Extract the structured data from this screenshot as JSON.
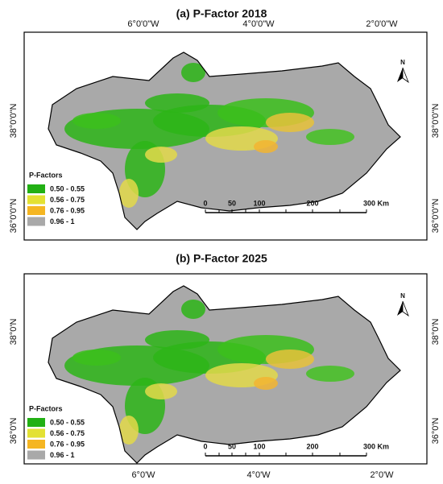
{
  "panels": [
    {
      "title": "(a) P-Factor 2018",
      "lon_labels": [
        "6°0'0\"W",
        "4°0'0\"W",
        "2°0'0\"W"
      ],
      "lat_labels": [
        "38°0'0\"N",
        "36°0'0\"N"
      ],
      "north": "N",
      "legend": {
        "title": "P-Factors",
        "items": [
          {
            "label": "0.50 - 0.55",
            "color": "#22b014"
          },
          {
            "label": "0.56 - 0.75",
            "color": "#e3e133"
          },
          {
            "label": "0.76 - 0.95",
            "color": "#f5b622"
          },
          {
            "label": "0.96 - 1",
            "color": "#a9a9a9"
          }
        ]
      },
      "scale": [
        "0",
        "50",
        "100",
        "200",
        "300 Km"
      ]
    },
    {
      "title": "(b) P-Factor 2025",
      "lon_labels": [
        "6°0'W",
        "4°0'W",
        "2°0'W"
      ],
      "lat_labels": [
        "38°0'N",
        "36°0'N"
      ],
      "north": "N",
      "legend": {
        "title": "P-Factors",
        "items": [
          {
            "label": "0.50 - 0.55",
            "color": "#22b014"
          },
          {
            "label": "0.56 - 0.75",
            "color": "#e3e133"
          },
          {
            "label": "0.76 - 0.95",
            "color": "#f5b622"
          },
          {
            "label": "0.96 - 1",
            "color": "#a9a9a9"
          }
        ]
      },
      "scale": [
        "0",
        "50",
        "100",
        "200",
        "300 Km"
      ]
    }
  ]
}
